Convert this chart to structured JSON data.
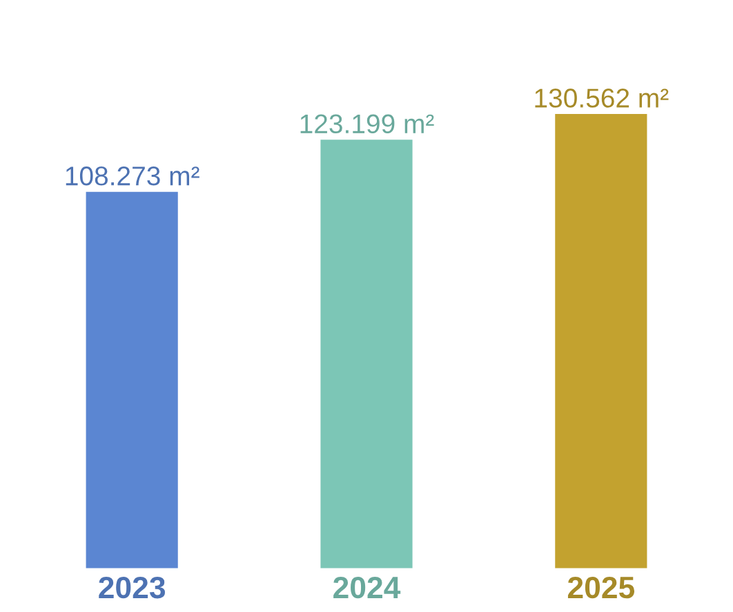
{
  "chart_data": {
    "type": "bar",
    "categories": [
      "2023",
      "2024",
      "2025"
    ],
    "values": [
      108.273,
      123.199,
      130.562
    ],
    "value_labels": [
      "108.273 m²",
      "123.199 m²",
      "130.562 m²"
    ],
    "colors": [
      "#5b86d2",
      "#7cc6b6",
      "#c3a22f"
    ],
    "tick_labels": "x",
    "grid": false,
    "legend": false
  }
}
